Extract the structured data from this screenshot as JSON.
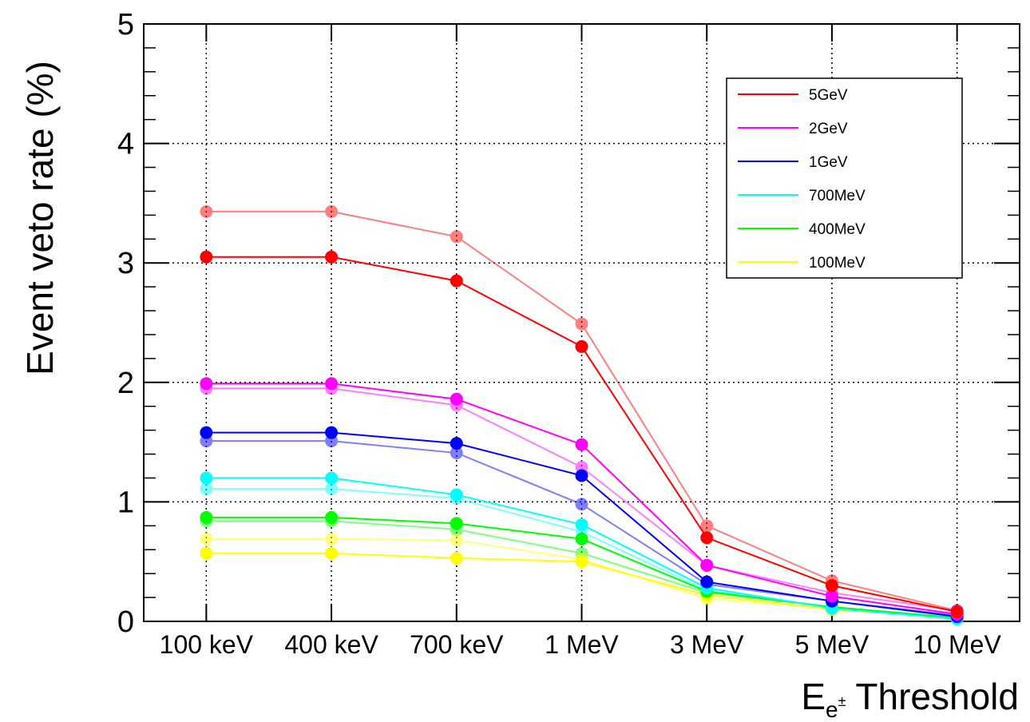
{
  "chart_data": {
    "type": "line",
    "title": "",
    "ylabel": "Event veto rate (%)",
    "xlabel": {
      "base": "E",
      "sub": "e",
      "sup": "±",
      "rest": " Threshold"
    },
    "categories": [
      "100 keV",
      "400 keV",
      "700 keV",
      "1 MeV",
      "3 MeV",
      "5 MeV",
      "10 MeV"
    ],
    "ylim": [
      0,
      5
    ],
    "yticks": [
      "0",
      "1",
      "2",
      "3",
      "4",
      "5"
    ],
    "grid": true,
    "legend_position": "top-right",
    "series": [
      {
        "name": "5GeV",
        "color": "#ff0000",
        "values": [
          3.05,
          3.05,
          2.85,
          2.3,
          0.7,
          0.3,
          0.08
        ]
      },
      {
        "name": "2GeV",
        "color": "#ff00ff",
        "values": [
          1.99,
          1.99,
          1.86,
          1.48,
          0.47,
          0.21,
          0.06
        ]
      },
      {
        "name": "1GeV",
        "color": "#0000ff",
        "values": [
          1.58,
          1.58,
          1.49,
          1.22,
          0.33,
          0.17,
          0.04
        ]
      },
      {
        "name": "700MeV",
        "color": "#00ffff",
        "values": [
          1.2,
          1.2,
          1.06,
          0.81,
          0.28,
          0.11,
          0.02
        ]
      },
      {
        "name": "400MeV",
        "color": "#00ff00",
        "values": [
          0.87,
          0.87,
          0.82,
          0.69,
          0.25,
          0.12,
          0.03
        ]
      },
      {
        "name": "100MeV",
        "color": "#ffff00",
        "values": [
          0.57,
          0.57,
          0.53,
          0.5,
          0.22,
          0.1,
          0.03
        ]
      }
    ],
    "faded_series": [
      {
        "color": "#ff0000",
        "values": [
          3.43,
          3.43,
          3.22,
          2.49,
          0.8,
          0.34,
          0.09
        ]
      },
      {
        "color": "#ff00ff",
        "values": [
          1.95,
          1.95,
          1.81,
          1.29,
          0.47,
          0.24,
          0.09
        ]
      },
      {
        "color": "#0000ff",
        "values": [
          1.51,
          1.51,
          1.41,
          0.98,
          0.31,
          0.17,
          0.05
        ]
      },
      {
        "color": "#00ffff",
        "values": [
          1.11,
          1.11,
          1.03,
          0.75,
          0.26,
          0.12,
          0.03
        ]
      },
      {
        "color": "#00ff00",
        "values": [
          0.84,
          0.84,
          0.77,
          0.57,
          0.24,
          0.12,
          0.03
        ]
      },
      {
        "color": "#ffff00",
        "values": [
          0.69,
          0.69,
          0.68,
          0.52,
          0.19,
          0.11,
          0.03
        ]
      }
    ]
  }
}
